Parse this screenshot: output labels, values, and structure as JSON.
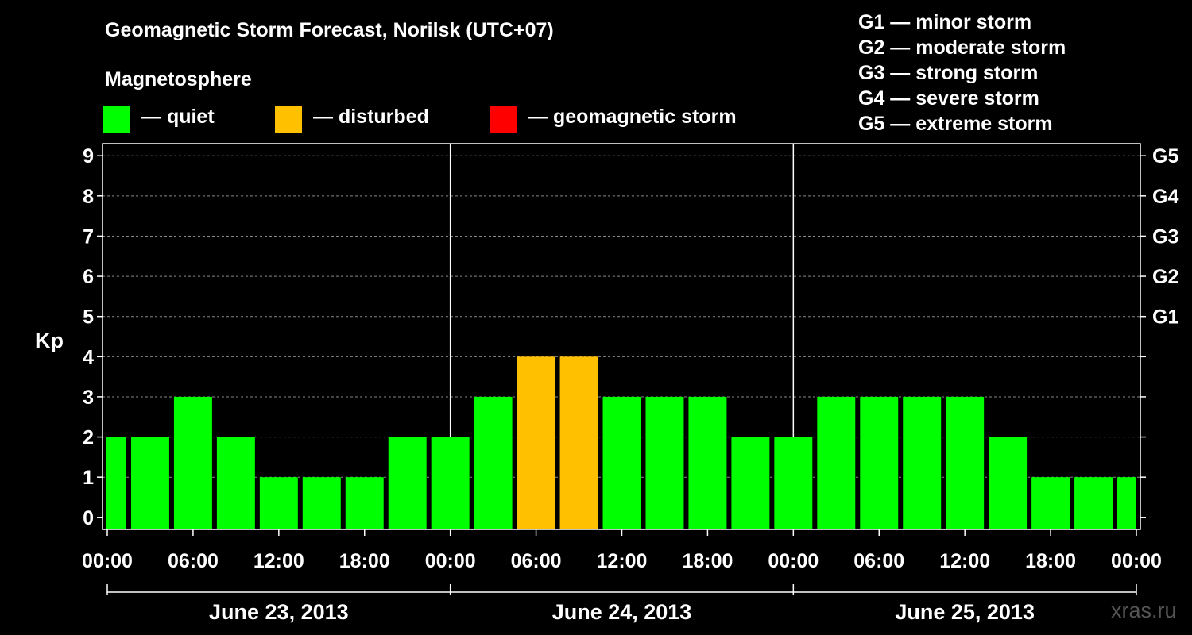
{
  "title": "Geomagnetic Storm Forecast, Norilsk (UTC+07)",
  "legend": {
    "heading": "Magnetosphere",
    "items": [
      {
        "label": "— quiet",
        "color": "#00ff00"
      },
      {
        "label": "— disturbed",
        "color": "#ffc000"
      },
      {
        "label": "— geomagnetic storm",
        "color": "#ff0000"
      }
    ]
  },
  "storm_scale": [
    "G1 — minor storm",
    "G2 — moderate storm",
    "G3 — strong storm",
    "G4 — severe storm",
    "G5 — extreme storm"
  ],
  "watermark": "xras.ru",
  "chart_data": {
    "type": "bar",
    "ylabel": "Kp",
    "ylim": [
      -0.3,
      9.3
    ],
    "y_ticks": [
      0,
      1,
      2,
      3,
      4,
      5,
      6,
      7,
      8,
      9
    ],
    "right_ticks": [
      {
        "value": 5,
        "label": "G1"
      },
      {
        "value": 6,
        "label": "G2"
      },
      {
        "value": 7,
        "label": "G3"
      },
      {
        "value": 8,
        "label": "G4"
      },
      {
        "value": 9,
        "label": "G5"
      }
    ],
    "x_tick_labels": [
      "00:00",
      "06:00",
      "12:00",
      "18:00",
      "00:00",
      "06:00",
      "12:00",
      "18:00",
      "00:00",
      "06:00",
      "12:00",
      "18:00",
      "00:00"
    ],
    "dates": [
      "June 23, 2013",
      "June 24, 2013",
      "June 25, 2013"
    ],
    "grid": true,
    "bars": [
      {
        "start": "2013-06-23 00:00",
        "kp": 2,
        "status": "quiet"
      },
      {
        "start": "2013-06-23 03:00",
        "kp": 2,
        "status": "quiet"
      },
      {
        "start": "2013-06-23 06:00",
        "kp": 3,
        "status": "quiet"
      },
      {
        "start": "2013-06-23 09:00",
        "kp": 2,
        "status": "quiet"
      },
      {
        "start": "2013-06-23 12:00",
        "kp": 1,
        "status": "quiet"
      },
      {
        "start": "2013-06-23 15:00",
        "kp": 1,
        "status": "quiet"
      },
      {
        "start": "2013-06-23 18:00",
        "kp": 1,
        "status": "quiet"
      },
      {
        "start": "2013-06-23 21:00",
        "kp": 2,
        "status": "quiet"
      },
      {
        "start": "2013-06-24 00:00",
        "kp": 2,
        "status": "quiet"
      },
      {
        "start": "2013-06-24 03:00",
        "kp": 3,
        "status": "quiet"
      },
      {
        "start": "2013-06-24 06:00",
        "kp": 4,
        "status": "disturbed"
      },
      {
        "start": "2013-06-24 09:00",
        "kp": 4,
        "status": "disturbed"
      },
      {
        "start": "2013-06-24 12:00",
        "kp": 3,
        "status": "quiet"
      },
      {
        "start": "2013-06-24 15:00",
        "kp": 3,
        "status": "quiet"
      },
      {
        "start": "2013-06-24 18:00",
        "kp": 3,
        "status": "quiet"
      },
      {
        "start": "2013-06-24 21:00",
        "kp": 2,
        "status": "quiet"
      },
      {
        "start": "2013-06-25 00:00",
        "kp": 2,
        "status": "quiet"
      },
      {
        "start": "2013-06-25 03:00",
        "kp": 3,
        "status": "quiet"
      },
      {
        "start": "2013-06-25 06:00",
        "kp": 3,
        "status": "quiet"
      },
      {
        "start": "2013-06-25 09:00",
        "kp": 3,
        "status": "quiet"
      },
      {
        "start": "2013-06-25 12:00",
        "kp": 3,
        "status": "quiet"
      },
      {
        "start": "2013-06-25 15:00",
        "kp": 2,
        "status": "quiet"
      },
      {
        "start": "2013-06-25 18:00",
        "kp": 1,
        "status": "quiet"
      },
      {
        "start": "2013-06-25 21:00",
        "kp": 1,
        "status": "quiet"
      },
      {
        "start": "2013-06-26 00:00",
        "kp": 1,
        "status": "quiet"
      }
    ]
  }
}
